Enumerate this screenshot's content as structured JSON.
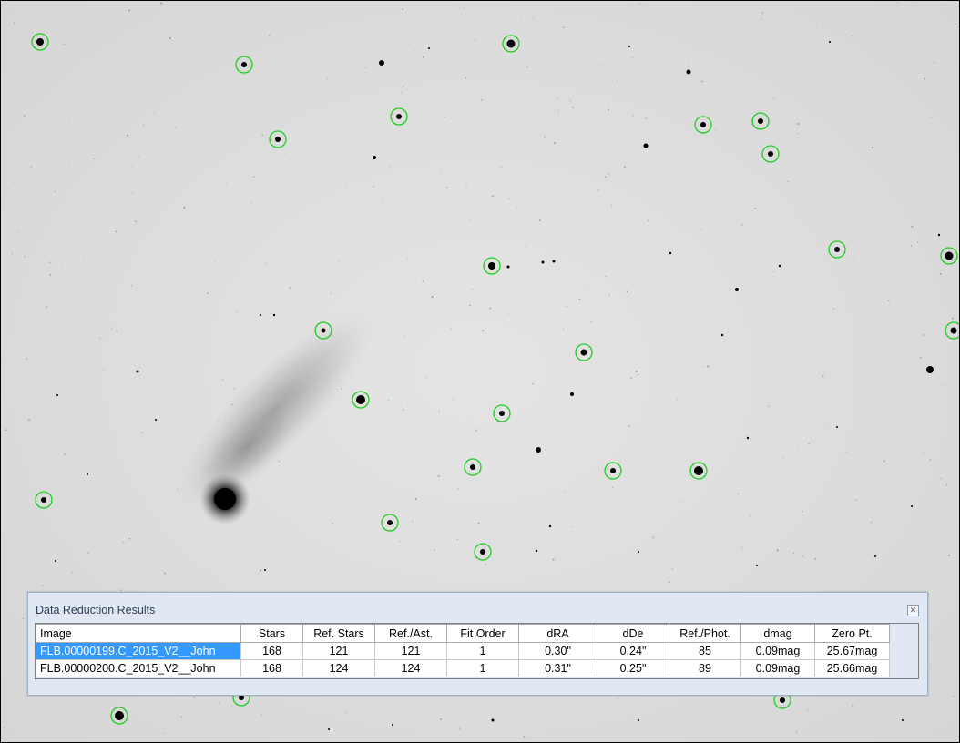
{
  "panel": {
    "title": "Data Reduction Results",
    "close_icon": "close-icon"
  },
  "table": {
    "columns": [
      "Image",
      "Stars",
      "Ref. Stars",
      "Ref./Ast.",
      "Fit Order",
      "dRA",
      "dDe",
      "Ref./Phot.",
      "dmag",
      "Zero Pt."
    ],
    "rows": [
      [
        "FLB.00000199.C_2015_V2__John",
        "168",
        "121",
        "121",
        "1",
        "0.30\"",
        "0.24\"",
        "85",
        "0.09mag",
        "25.67mag"
      ],
      [
        "FLB.00000200.C_2015_V2__John",
        "168",
        "124",
        "124",
        "1",
        "0.31\"",
        "0.25\"",
        "89",
        "0.09mag",
        "25.66mag"
      ]
    ],
    "selected_row": 0
  },
  "colors": {
    "selection": "#3399ff",
    "marker": "#22cc22",
    "panel_bg": "#dfe8f3"
  }
}
